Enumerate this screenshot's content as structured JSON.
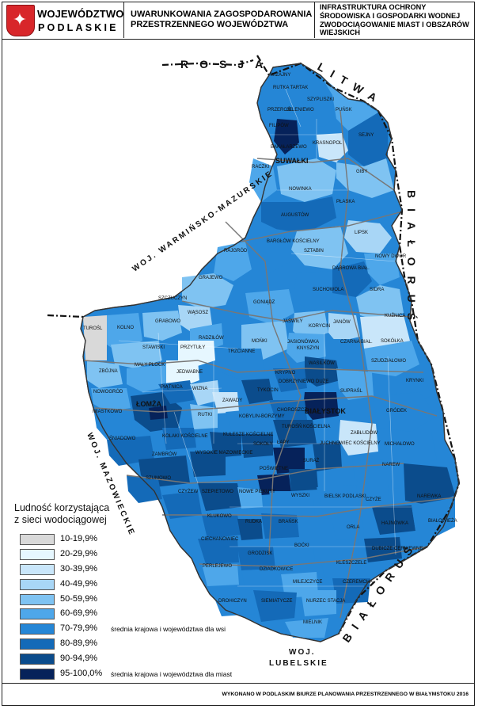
{
  "header": {
    "org_line1": "WOJEWÓDZTWO",
    "org_line2": "PODLASKIE",
    "title": "UWARUNKOWANIA ZAGOSPODAROWANIA PRZESTRZENNEGO WOJEWÓDZTWA",
    "subtitle": "INFRASTRUKTURA OCHRONY ŚRODOWISKA I GOSPODARKI WODNEJ ZWODOCIĄGOWANIE MIAST I OBSZARÓW WIEJSKICH"
  },
  "borders": {
    "rosja": "ROSJA",
    "litwa": "LITWA",
    "bialorus_east": "BIAŁORUŚ",
    "bialorus_south": "BIAŁORUŚ",
    "warminsko": "WOJ. WARMIŃSKO-MAZURSKIE",
    "mazowieckie": "WOJ. MAZOWIECKIE",
    "lubelskie_1": "WOJ.",
    "lubelskie_2": "LUBELSKIE"
  },
  "cities": {
    "suwalki": "SUWAŁKI",
    "lomza": "ŁOMŻA",
    "bialystok": "BIAŁYSTOK"
  },
  "gminy": [
    "WIŻAJNY",
    "RUTKA TARTAK",
    "SZYPLISZKI",
    "PRZEROŚL",
    "JELENIEWO",
    "PUŃSK",
    "FILIPÓW",
    "SEJNY",
    "KRASNOPOL",
    "BAKAŁARZEWO",
    "RACZKI",
    "GIBY",
    "NOWINKA",
    "AUGUSTÓW",
    "PŁASKA",
    "BARGŁÓW KOŚCIELNY",
    "LIPSK",
    "RAJGRÓD",
    "SZTABIN",
    "DĄBROWA BIAŁ.",
    "NOWY DWÓR",
    "GRAJEWO",
    "SUCHOWOLA",
    "SIDRA",
    "SZCZUCZYN",
    "GONIĄDZ",
    "KUŹNICA",
    "JAŚWIŁY",
    "KORYCIN",
    "JANÓW",
    "SOKÓŁKA",
    "TUROŚL",
    "KOLNO",
    "GRABOWO",
    "WĄSOSZ",
    "RADZIŁÓW",
    "MOŃKI",
    "JASIONÓWKA",
    "KNYSZYN",
    "CZARNA BIAŁ.",
    "SZUDZIAŁOWO",
    "STAWISKI",
    "PRZYTUŁY",
    "TRZCIANNE",
    "MAŁY PŁOCK",
    "JEDWABNE",
    "KRYNKI",
    "ZBÓJNA",
    "KRYPNO",
    "WASILKÓW",
    "DOBRZYNIEWO DUŻE",
    "PIĄTNICA",
    "WIZNA",
    "TYKOCIN",
    "SUPRAŚL",
    "NOWOGRÓD",
    "ZAWADY",
    "CHOROSZCZ",
    "GRÓDEK",
    "MIASTKOWO",
    "RUTKI",
    "KOBYLIN-BORZYMY",
    "TUROŚŃ KOŚCIELNA",
    "ZABŁUDÓW",
    "KOLAKI KOŚCIELNE",
    "KULESZE KOŚCIELNE",
    "SOKOŁY",
    "ŁAPY",
    "JUCHNOWIEC KOŚCIELNY",
    "ŚNIADOWO",
    "WYSOKIE MAZOWIECKIE",
    "MICHAŁOWO",
    "ZAMBRÓW",
    "POŚWIĘTNE",
    "SURAŻ",
    "NAREW",
    "SZUMOWO",
    "CZYŻEW",
    "SZEPIETOWO",
    "NOWE PIEKUTY",
    "WYSZKI",
    "BIELSK PODLASKI",
    "NAREWKA",
    "CZYŻE",
    "KLUKOWO",
    "RUDKA",
    "BRAŃSK",
    "HAJNÓWKA",
    "BIAŁOWIEŻA",
    "CIECHANOWIEC",
    "ORLA",
    "BOĆKI",
    "DUBICZE CERKIEWNE",
    "GRODZISK",
    "PERLEJEWO",
    "DZIADKOWICE",
    "KLESZCZELE",
    "MILEJCZYCE",
    "CZEREMCHA",
    "DROHICZYN",
    "SIEMIATYCZE",
    "NURZEC STACJA",
    "MIELNIK"
  ],
  "legend": {
    "title": "Ludność korzystająca\nz sieci wodociągowej",
    "classes": [
      {
        "label": "10-19,9%",
        "color": "#d9d9d9",
        "note": ""
      },
      {
        "label": "20-29,9%",
        "color": "#e6f7ff",
        "note": ""
      },
      {
        "label": "30-39,9%",
        "color": "#c9e6fa",
        "note": ""
      },
      {
        "label": "40-49,9%",
        "color": "#a8d6f6",
        "note": ""
      },
      {
        "label": "50-59,9%",
        "color": "#7fc3f2",
        "note": ""
      },
      {
        "label": "60-69,9%",
        "color": "#4ea7ea",
        "note": ""
      },
      {
        "label": "70-79,9%",
        "color": "#2586d6",
        "note": "średnia krajowa i województwa dla wsi"
      },
      {
        "label": "80-89,9%",
        "color": "#146ab8",
        "note": ""
      },
      {
        "label": "90-94,9%",
        "color": "#0b4c8c",
        "note": ""
      },
      {
        "label": "95-100,0%",
        "color": "#06225a",
        "note": "średnia krajowa i województwa dla miast"
      }
    ]
  },
  "footer": {
    "credit": "WYKONANO W PODLASKIM BIURZE PLANOWANIA PRZESTRZENNEGO W BIAŁYMSTOKU 2016"
  }
}
